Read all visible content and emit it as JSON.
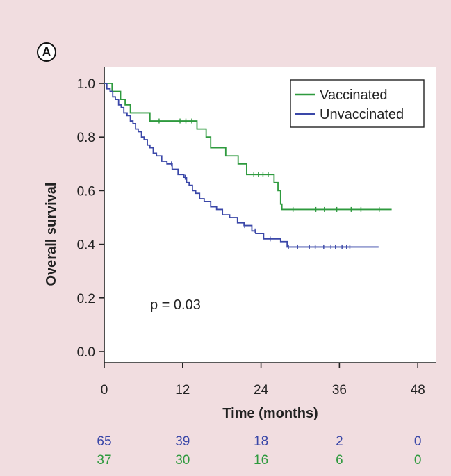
{
  "panel_label": "A",
  "colors": {
    "vaccinated": "#2e9a3e",
    "unvaccinated": "#3a47a8",
    "background": "#f1dde0"
  },
  "chart_data": {
    "type": "line",
    "subtype": "kaplan-meier step curve",
    "title": "",
    "xlabel": "Time (months)",
    "ylabel": "Overall survival",
    "xlim": [
      0,
      48
    ],
    "ylim": [
      0,
      1.0
    ],
    "xticks": [
      0,
      12,
      24,
      36,
      48
    ],
    "xtick_labels": [
      "0",
      "12",
      "24",
      "36",
      "48"
    ],
    "yticks": [
      0,
      0.2,
      0.4,
      0.6,
      0.8,
      1.0
    ],
    "ytick_labels": [
      "0.0",
      "0.2",
      "0.4",
      "0.6",
      "0.8",
      "1.0"
    ],
    "grid": false,
    "legend_position": "top-right",
    "annotation": "p = 0.03",
    "series": [
      {
        "name": "Vaccinated",
        "color": "#2e9a3e",
        "steps": [
          [
            0,
            1.0
          ],
          [
            1.2,
            0.97
          ],
          [
            2.5,
            0.94
          ],
          [
            3.2,
            0.92
          ],
          [
            4,
            0.89
          ],
          [
            7,
            0.86
          ],
          [
            14.2,
            0.83
          ],
          [
            15.6,
            0.8
          ],
          [
            16.3,
            0.76
          ],
          [
            18.6,
            0.73
          ],
          [
            20.5,
            0.7
          ],
          [
            21.8,
            0.66
          ],
          [
            26,
            0.63
          ],
          [
            26.6,
            0.6
          ],
          [
            27,
            0.55
          ],
          [
            27.2,
            0.53
          ],
          [
            44,
            0.53
          ]
        ],
        "censor_x": [
          8.4,
          11.6,
          12.5,
          13.4,
          22.9,
          23.6,
          24.3,
          25.1,
          28.9,
          32.4,
          33.7,
          35.6,
          37.8,
          39.3,
          42.1
        ]
      },
      {
        "name": "Unvaccinated",
        "color": "#3a47a8",
        "steps": [
          [
            0,
            1.0
          ],
          [
            0.4,
            0.98
          ],
          [
            0.9,
            0.97
          ],
          [
            1.3,
            0.95
          ],
          [
            1.7,
            0.94
          ],
          [
            2.2,
            0.92
          ],
          [
            2.6,
            0.91
          ],
          [
            3.0,
            0.89
          ],
          [
            3.5,
            0.88
          ],
          [
            4.0,
            0.86
          ],
          [
            4.4,
            0.85
          ],
          [
            4.8,
            0.83
          ],
          [
            5.2,
            0.82
          ],
          [
            5.7,
            0.8
          ],
          [
            6.1,
            0.79
          ],
          [
            6.6,
            0.77
          ],
          [
            7.0,
            0.76
          ],
          [
            7.5,
            0.74
          ],
          [
            8.0,
            0.73
          ],
          [
            8.8,
            0.71
          ],
          [
            9.6,
            0.7
          ],
          [
            10.4,
            0.68
          ],
          [
            11.3,
            0.66
          ],
          [
            12.2,
            0.65
          ],
          [
            12.6,
            0.63
          ],
          [
            13.0,
            0.62
          ],
          [
            13.5,
            0.6
          ],
          [
            14.0,
            0.59
          ],
          [
            14.6,
            0.57
          ],
          [
            15.3,
            0.56
          ],
          [
            16.3,
            0.54
          ],
          [
            17.2,
            0.53
          ],
          [
            18.1,
            0.51
          ],
          [
            19.2,
            0.5
          ],
          [
            20.4,
            0.48
          ],
          [
            21.4,
            0.47
          ],
          [
            22.6,
            0.45
          ],
          [
            23.2,
            0.44
          ],
          [
            24.4,
            0.42
          ],
          [
            27.0,
            0.41
          ],
          [
            28.0,
            0.39
          ],
          [
            42.0,
            0.39
          ]
        ],
        "censor_x": [
          10.3,
          12.4,
          21.5,
          23.1,
          25.4,
          28.2,
          29.6,
          31.4,
          32.3,
          33.6,
          34.7,
          35.4,
          36.4,
          37.1,
          37.6
        ]
      }
    ],
    "numbers_at_risk": {
      "x": [
        0,
        12,
        24,
        36,
        48
      ],
      "rows": [
        {
          "name": "Unvaccinated",
          "color": "#3a47a8",
          "values": [
            "65",
            "39",
            "18",
            "2",
            "0"
          ]
        },
        {
          "name": "Vaccinated",
          "color": "#2e9a3e",
          "values": [
            "37",
            "30",
            "16",
            "6",
            "0"
          ]
        }
      ]
    }
  }
}
